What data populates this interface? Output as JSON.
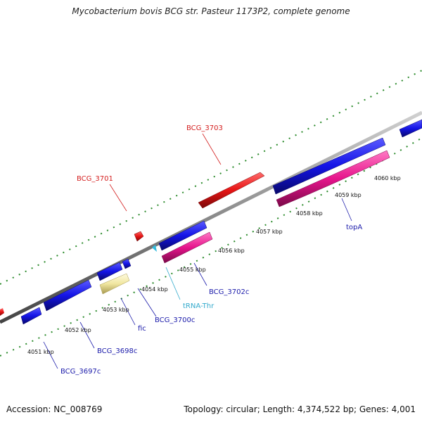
{
  "title": "Mycobacterium bovis BCG str. Pasteur 1173P2, complete genome",
  "footer": {
    "accession": "Accession: NC_008769",
    "summary": "Topology: circular; Length: 4,374,522 bp; Genes: 4,001"
  },
  "colors": {
    "backbone": "#888888",
    "tick": "#2a8a2a",
    "gene_blue": "#1414e6",
    "gene_red": "#e61414",
    "gene_pink": "#e6148c",
    "gene_yellow": "#f0e6a0",
    "trna": "#33bbdd",
    "label_blue": "#1a1aaa",
    "label_red": "#d42020",
    "label_cyan": "#33aacc"
  },
  "scale": {
    "unit": "kbp",
    "ticks": [
      {
        "label": "4051 kbp"
      },
      {
        "label": "4052 kbp"
      },
      {
        "label": "4053 kbp"
      },
      {
        "label": "4054 kbp"
      },
      {
        "label": "4055 kbp"
      },
      {
        "label": "4056 kbp"
      },
      {
        "label": "4057 kbp"
      },
      {
        "label": "4058 kbp"
      },
      {
        "label": "4059 kbp"
      },
      {
        "label": "4060 kbp"
      }
    ]
  },
  "features": {
    "BCG_3697c": "BCG_3697c",
    "BCG_3698c": "BCG_3698c",
    "fic": "fic",
    "BCG_3700c": "BCG_3700c",
    "BCG_3701": "BCG_3701",
    "tRNA_Thr": "tRNA-Thr",
    "BCG_3702c": "BCG_3702c",
    "BCG_3703": "BCG_3703",
    "topA": "topA"
  }
}
